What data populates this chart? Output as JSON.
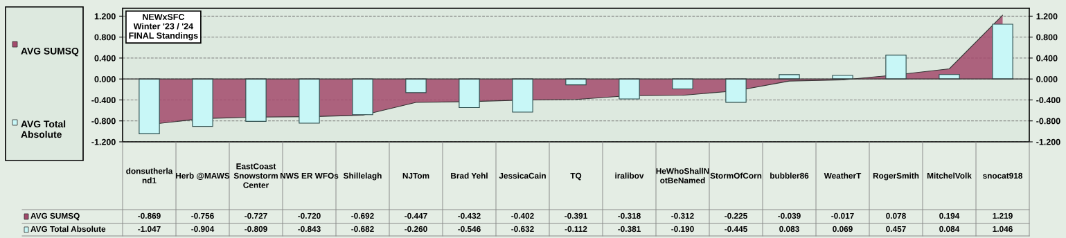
{
  "chart_data": {
    "type": "bar",
    "title": "NEWxSFC\nWinter '23 / '24\nFINAL Standings",
    "categories": [
      "donsutherland1",
      "Herb @MAWS",
      "EastCoast Snowstorm Center",
      "NWS ER WFOs",
      "Shillelagh",
      "NJTom",
      "Brad Yehl",
      "JessicaCain",
      "TQ",
      "iralibov",
      "HeWhoShallNotBeNamed",
      "StormOfCorn",
      "bubbler86",
      "WeatherT",
      "RogerSmith",
      "MitchelVolk",
      "snocat918"
    ],
    "series": [
      {
        "name": "AVG SUMSQ",
        "type": "area",
        "color": "#a34a6c",
        "values": [
          -0.869,
          -0.756,
          -0.727,
          -0.72,
          -0.692,
          -0.447,
          -0.432,
          -0.402,
          -0.391,
          -0.318,
          -0.312,
          -0.225,
          -0.039,
          -0.017,
          0.078,
          0.194,
          1.219
        ],
        "value_labels": [
          "-0.869",
          "-0.756",
          "-0.727",
          "-0.720",
          "-0.692",
          "-0.447",
          "-0.432",
          "-0.402",
          "-0.391",
          "-0.318",
          "-0.312",
          "-0.225",
          "-0.039",
          "-0.017",
          "0.078",
          "0.194",
          "1.219"
        ]
      },
      {
        "name": "AVG Total Absolute",
        "color": "#c8f7f7",
        "values": [
          -1.047,
          -0.904,
          -0.809,
          -0.843,
          -0.682,
          -0.26,
          -0.546,
          -0.632,
          -0.112,
          -0.381,
          -0.19,
          -0.445,
          0.083,
          0.069,
          0.457,
          0.084,
          1.046
        ],
        "value_labels": [
          "-1.047",
          "-0.904",
          "-0.809",
          "-0.843",
          "-0.682",
          "-0.260",
          "-0.546",
          "-0.632",
          "-0.112",
          "-0.381",
          "-0.190",
          "-0.445",
          "0.083",
          "0.069",
          "0.457",
          "0.084",
          "1.046"
        ]
      }
    ],
    "ylim": [
      -1.2,
      1.35
    ],
    "yticks": [
      {
        "value": -1.2,
        "label": "-1.200"
      },
      {
        "value": -0.8,
        "label": "-0.800"
      },
      {
        "value": -0.4,
        "label": "-0.400"
      },
      {
        "value": 0,
        "label": "0.000"
      },
      {
        "value": 0.4,
        "label": "0.400"
      },
      {
        "value": 0.8,
        "label": "0.800"
      },
      {
        "value": 1.2,
        "label": "1.200"
      }
    ],
    "y2lim": [
      -1.2,
      1.35
    ],
    "y2ticks": [
      {
        "value": -1.2,
        "label": "-1.200"
      },
      {
        "value": -0.8,
        "label": "-0.800"
      },
      {
        "value": -0.4,
        "label": "-0.400"
      },
      {
        "value": 0,
        "label": "0.000"
      },
      {
        "value": 0.4,
        "label": "0.400"
      },
      {
        "value": 0.8,
        "label": "0.800"
      },
      {
        "value": 1.2,
        "label": "1.200"
      }
    ],
    "grid": "y",
    "legend": "left"
  }
}
